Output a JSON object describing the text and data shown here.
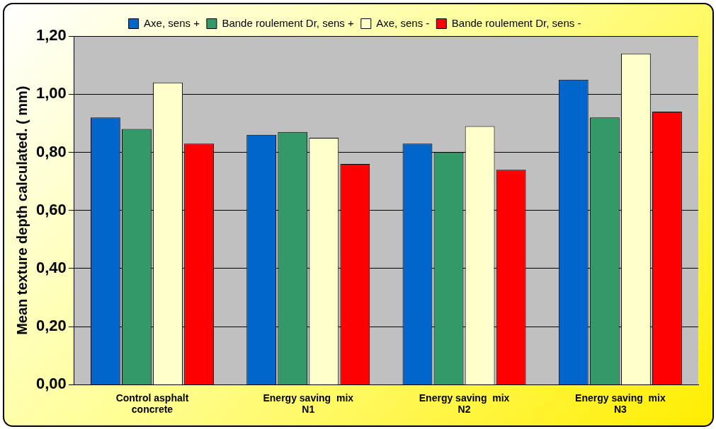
{
  "chart_data": {
    "type": "bar",
    "ylabel": "Mean texture depth calculated. ( mm)",
    "categories": [
      "Control asphalt concrete",
      "Energy saving  mix N1",
      "Energy saving  mix N2",
      "Energy saving  mix N3"
    ],
    "series": [
      {
        "name": "Axe, sens +",
        "color": "#0066cc",
        "values": [
          0.92,
          0.86,
          0.83,
          1.05
        ]
      },
      {
        "name": "Bande roulement Dr, sens +",
        "color": "#339966",
        "values": [
          0.88,
          0.87,
          0.8,
          0.92
        ]
      },
      {
        "name": "Axe, sens -",
        "color": "#ffffcc",
        "values": [
          1.04,
          0.85,
          0.89,
          1.14
        ]
      },
      {
        "name": "Bande roulement Dr, sens -",
        "color": "#ff0000",
        "values": [
          0.83,
          0.76,
          0.74,
          0.94
        ]
      }
    ],
    "ylim": [
      0,
      1.2
    ],
    "yticks": [
      {
        "value": 0,
        "label": "0,00"
      },
      {
        "value": 0.2,
        "label": "0,20"
      },
      {
        "value": 0.4,
        "label": "0,40"
      },
      {
        "value": 0.6,
        "label": "0,60"
      },
      {
        "value": 0.8,
        "label": "0,80"
      },
      {
        "value": 1.0,
        "label": "1,00"
      },
      {
        "value": 1.2,
        "label": "1,20"
      }
    ],
    "grid": "y",
    "legend": "top"
  }
}
